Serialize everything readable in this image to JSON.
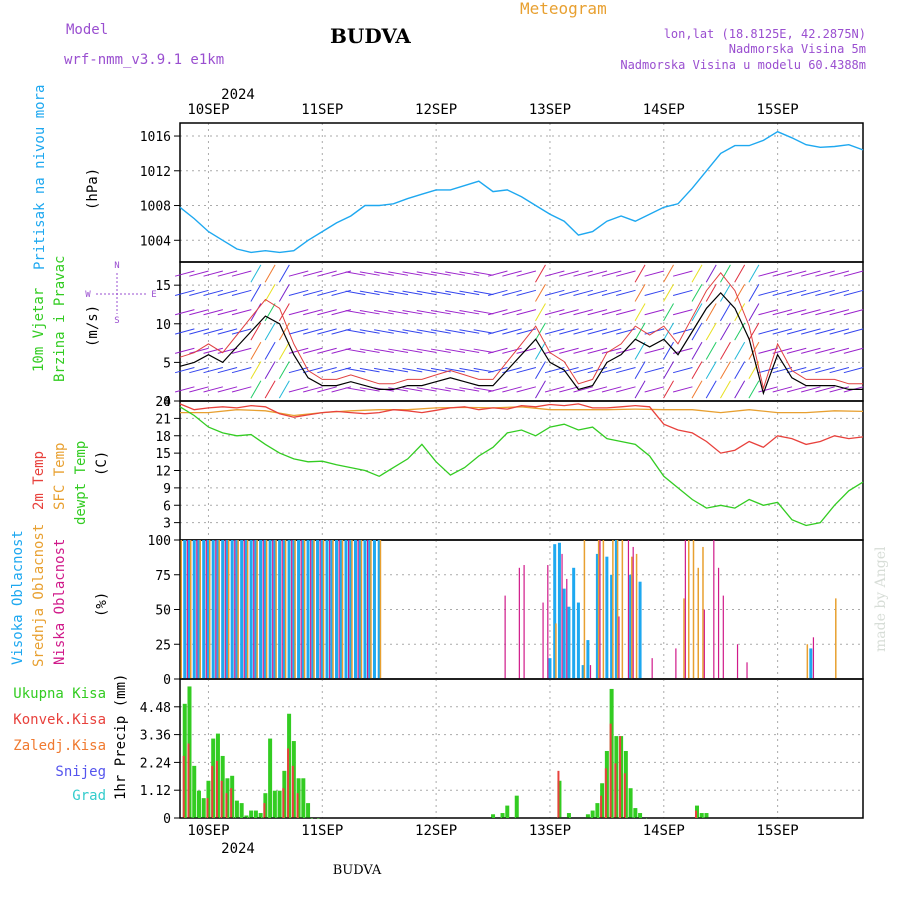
{
  "header": {
    "model_label": "Model",
    "model_name": "wrf-nmm_v3.9.1 e1km",
    "station": "BUDVA",
    "product": "Meteogram",
    "coords": "lon,lat (18.8125E, 42.2875N)",
    "elevation": "Nadmorska Visina 5m",
    "model_elevation": "Nadmorska Visina u modelu 60.4388m",
    "footer_station": "BUDVA",
    "watermark": "made by Angel"
  },
  "colors": {
    "pressure": "#1ea8f0",
    "wind_speed": "#000000",
    "gust": "#e04040",
    "temp2m": "#e8413c",
    "sfc_temp": "#e8a030",
    "dewpt": "#33cc22",
    "cloud_high": "#1ea8f0",
    "cloud_mid": "#e8a030",
    "cloud_low": "#d01a8a",
    "precip_total": "#33cc22",
    "precip_conv": "#e8413c",
    "precip_frz": "#f07a30",
    "snow": "#5555ee",
    "grad": "#33cccc",
    "label_title": "#9a4fd0",
    "label_orange": "#e8a030"
  },
  "time_axis": {
    "year": "2024",
    "days": [
      "10SEP",
      "11SEP",
      "12SEP",
      "13SEP",
      "14SEP",
      "15SEP"
    ]
  },
  "panels": {
    "pressure": {
      "ylabel_name": "Pritisak na nivou mora",
      "ylabel_unit": "(hPa)",
      "ticks": [
        "1004",
        "1008",
        "1012",
        "1016"
      ]
    },
    "wind": {
      "ylabel_name1": "10m Vjetar",
      "ylabel_name2": "Brzina i Pravac",
      "ylabel_unit": "(m/s)",
      "compass_n": "N",
      "compass_w": "W",
      "compass_e": "E",
      "compass_s": "S",
      "ticks": [
        "0",
        "5",
        "10",
        "15"
      ]
    },
    "temperature": {
      "ylabel_t2m": "2m Temp",
      "ylabel_sfc": "SFC Temp",
      "ylabel_dew": "dewpt Temp",
      "ylabel_unit": "(C)",
      "ticks": [
        "3",
        "6",
        "9",
        "12",
        "15",
        "18",
        "21",
        "24"
      ]
    },
    "cloud": {
      "ylabel_high": "Visoka Oblacnost",
      "ylabel_mid": "Srednja Oblacnost",
      "ylabel_low": "Niska Oblacnost",
      "ylabel_unit": "(%)",
      "ticks": [
        "0",
        "25",
        "50",
        "75",
        "100"
      ]
    },
    "precip": {
      "legend": [
        "Ukupna Kisa",
        "Konvek.Kisa",
        "Zaledj.Kisa",
        "Snijeg",
        "Grad"
      ],
      "ylabel": "1hr Precip (mm)",
      "ticks": [
        "0",
        "1.12",
        "2.24",
        "3.36",
        "4.48"
      ]
    }
  },
  "chart_data": {
    "type": "line",
    "x_unit": "hours from 10SEP 00 UTC",
    "x_range": [
      -6,
      138
    ],
    "series": [
      {
        "name": "Pritisak na nivou mora",
        "unit": "hPa",
        "ylim": [
          1001.5,
          1017.5
        ],
        "x": [
          -6,
          -3,
          0,
          3,
          6,
          9,
          12,
          15,
          18,
          21,
          24,
          27,
          30,
          33,
          36,
          39,
          42,
          45,
          48,
          51,
          54,
          57,
          60,
          63,
          66,
          69,
          72,
          75,
          78,
          81,
          84,
          87,
          90,
          93,
          96,
          99,
          102,
          105,
          108,
          111,
          114,
          117,
          120,
          123,
          126,
          129,
          132,
          135,
          138
        ],
        "values": [
          1007.8,
          1006.5,
          1005.0,
          1004.0,
          1003.0,
          1002.6,
          1002.8,
          1002.6,
          1002.8,
          1004.0,
          1005.0,
          1006.0,
          1006.8,
          1008.0,
          1008.0,
          1008.2,
          1008.8,
          1009.3,
          1009.8,
          1009.8,
          1010.3,
          1010.8,
          1009.6,
          1009.8,
          1009.0,
          1008.0,
          1007.0,
          1006.2,
          1004.6,
          1005.0,
          1006.2,
          1006.8,
          1006.2,
          1007.0,
          1007.8,
          1008.2,
          1010.0,
          1012.0,
          1014.0,
          1014.9,
          1014.9,
          1015.5,
          1016.5,
          1015.8,
          1015.0,
          1014.7,
          1014.8,
          1015.0,
          1014.4
        ]
      },
      {
        "name": "10m Vjetar",
        "unit": "m/s",
        "ylim": [
          0,
          18
        ],
        "x": [
          -6,
          -3,
          0,
          3,
          6,
          9,
          12,
          15,
          18,
          21,
          24,
          27,
          30,
          33,
          36,
          39,
          42,
          45,
          48,
          51,
          54,
          57,
          60,
          63,
          66,
          69,
          72,
          75,
          78,
          81,
          84,
          87,
          90,
          93,
          96,
          99,
          102,
          105,
          108,
          111,
          114,
          117,
          120,
          123,
          126,
          129,
          132,
          135,
          138
        ],
        "values": [
          4.5,
          5,
          6,
          5,
          7,
          9,
          11,
          10,
          6,
          3,
          2,
          2,
          2.5,
          2,
          1.5,
          1.5,
          2,
          2,
          2.5,
          3,
          2.5,
          2,
          2,
          4,
          6,
          8,
          5,
          4,
          1.5,
          2,
          5,
          6,
          8,
          7,
          8,
          6,
          9,
          12,
          14,
          12,
          8,
          1,
          6,
          3,
          2,
          2,
          2,
          1.5,
          1.5
        ]
      },
      {
        "name": "2m Temp",
        "unit": "C",
        "ylim": [
          0,
          24
        ],
        "x": [
          -6,
          -3,
          0,
          3,
          6,
          9,
          12,
          15,
          18,
          21,
          24,
          27,
          30,
          33,
          36,
          39,
          42,
          45,
          48,
          51,
          54,
          57,
          60,
          63,
          66,
          69,
          72,
          75,
          78,
          81,
          84,
          87,
          90,
          93,
          96,
          99,
          102,
          105,
          108,
          111,
          114,
          117,
          120,
          123,
          126,
          129,
          132,
          135,
          138
        ],
        "values": [
          23.5,
          22.5,
          22.8,
          23.0,
          22.8,
          23.2,
          23.0,
          21.8,
          21.2,
          21.6,
          22.0,
          22.2,
          22.0,
          21.8,
          22.0,
          22.5,
          22.3,
          22.0,
          22.4,
          22.8,
          23.0,
          22.5,
          22.8,
          22.6,
          23.2,
          23.0,
          23.4,
          23.2,
          23.5,
          22.8,
          22.8,
          23.0,
          23.2,
          23.0,
          20.0,
          19.0,
          18.5,
          17.0,
          15.0,
          15.5,
          17.0,
          16.0,
          18.0,
          17.5,
          16.5,
          17.0,
          18.0,
          17.5,
          17.8
        ]
      },
      {
        "name": "SFC Temp",
        "unit": "C",
        "ylim": [
          0,
          24
        ],
        "x": [
          -6,
          0,
          6,
          12,
          18,
          24,
          30,
          36,
          42,
          48,
          54,
          60,
          66,
          72,
          78,
          84,
          90,
          96,
          102,
          108,
          114,
          120,
          126,
          132,
          138
        ],
        "values": [
          22.0,
          22.0,
          22.5,
          22.3,
          21.5,
          22.0,
          22.3,
          22.5,
          22.5,
          22.8,
          22.9,
          22.8,
          23.0,
          22.5,
          22.5,
          22.5,
          22.6,
          22.5,
          22.5,
          22.0,
          22.5,
          22.0,
          22.0,
          22.3,
          22.2
        ]
      },
      {
        "name": "dewpt Temp",
        "unit": "C",
        "ylim": [
          0,
          24
        ],
        "x": [
          -6,
          -3,
          0,
          3,
          6,
          9,
          12,
          15,
          18,
          21,
          24,
          27,
          30,
          33,
          36,
          39,
          42,
          45,
          48,
          51,
          54,
          57,
          60,
          63,
          66,
          69,
          72,
          75,
          78,
          81,
          84,
          87,
          90,
          93,
          96,
          99,
          102,
          105,
          108,
          111,
          114,
          117,
          120,
          123,
          126,
          129,
          132,
          135,
          138
        ],
        "values": [
          23,
          21.5,
          19.5,
          18.5,
          18.0,
          18.2,
          16.5,
          15.0,
          14.0,
          13.5,
          13.6,
          13.0,
          12.5,
          12.0,
          11.0,
          12.5,
          14.0,
          16.5,
          13.5,
          11.2,
          12.5,
          14.5,
          16.0,
          18.5,
          19.0,
          18.0,
          19.5,
          20.0,
          19.0,
          19.5,
          17.5,
          17.0,
          16.5,
          14.5,
          11.0,
          9.0,
          7.0,
          5.5,
          6.0,
          5.5,
          7.0,
          6.0,
          6.5,
          3.5,
          2.5,
          3.0,
          6.0,
          8.5,
          10.0
        ]
      }
    ],
    "cloud_cover": {
      "unit": "%",
      "ylim": [
        0,
        100
      ],
      "high_x": [
        -5,
        -4,
        -3,
        -2,
        -1,
        0,
        1,
        2,
        3,
        4,
        5,
        6,
        7,
        8,
        9,
        10,
        11,
        12,
        13,
        14,
        15,
        16,
        17,
        18,
        19,
        20,
        21,
        22,
        23,
        24,
        25,
        26,
        27,
        28,
        29,
        30,
        31,
        32,
        33,
        34,
        35,
        36,
        72,
        73,
        74,
        75,
        76,
        77,
        78,
        79,
        80,
        82,
        84,
        85,
        86,
        89,
        91,
        127
      ],
      "high_v": [
        100,
        100,
        100,
        100,
        100,
        100,
        100,
        100,
        100,
        100,
        100,
        100,
        100,
        100,
        100,
        100,
        100,
        100,
        100,
        100,
        100,
        100,
        100,
        100,
        100,
        100,
        100,
        100,
        100,
        100,
        100,
        100,
        100,
        100,
        100,
        100,
        100,
        100,
        100,
        100,
        100,
        100,
        15,
        97,
        98,
        65,
        52,
        80,
        55,
        10,
        28,
        90,
        88,
        75,
        100,
        75,
        70,
        22
      ],
      "mid_x": [
        -6,
        -4,
        -2,
        0,
        2,
        4,
        6,
        8,
        10,
        12,
        14,
        16,
        18,
        20,
        22,
        24,
        26,
        28,
        30,
        32,
        34,
        36,
        73,
        79,
        82,
        83,
        85,
        86,
        87,
        89,
        90,
        100,
        101,
        102,
        103,
        104,
        126,
        132
      ],
      "mid_v": [
        100,
        100,
        100,
        100,
        100,
        100,
        100,
        100,
        100,
        100,
        100,
        100,
        100,
        100,
        100,
        100,
        100,
        100,
        100,
        100,
        100,
        100,
        40,
        100,
        100,
        100,
        100,
        100,
        100,
        88,
        90,
        58,
        100,
        100,
        80,
        95,
        25,
        58
      ],
      "low_x": [
        -5,
        -3,
        -1,
        1,
        3,
        5,
        7,
        9,
        11,
        13,
        15,
        17,
        19,
        21,
        23,
        25,
        27,
        29,
        31,
        33,
        62,
        65,
        66,
        70,
        71,
        74,
        75,
        80,
        82,
        86,
        88,
        89,
        93,
        98,
        100,
        104,
        106,
        107,
        108,
        111,
        113,
        127
      ],
      "low_v": [
        100,
        100,
        100,
        100,
        100,
        100,
        100,
        100,
        100,
        100,
        100,
        100,
        100,
        100,
        100,
        100,
        100,
        100,
        100,
        100,
        60,
        80,
        82,
        55,
        82,
        90,
        72,
        10,
        100,
        45,
        100,
        95,
        15,
        22,
        100,
        50,
        100,
        80,
        60,
        25,
        12,
        30
      ]
    },
    "precipitation": {
      "unit": "mm",
      "ylim": [
        0,
        5.6
      ],
      "total_x": [
        -5,
        -4,
        -3,
        -2,
        -1,
        0,
        1,
        2,
        3,
        4,
        5,
        6,
        7,
        8,
        9,
        10,
        11,
        12,
        13,
        14,
        15,
        16,
        17,
        18,
        19,
        20,
        21,
        22,
        23,
        60,
        62,
        63,
        65,
        74,
        76,
        80,
        81,
        82,
        83,
        84,
        85,
        86,
        87,
        88,
        89,
        90,
        91,
        92,
        103,
        104,
        105
      ],
      "total_v": [
        4.6,
        5.3,
        2.1,
        1.1,
        0.8,
        1.5,
        3.2,
        3.4,
        2.5,
        1.6,
        1.7,
        0.7,
        0.6,
        0.1,
        0.3,
        0.3,
        0.2,
        1.0,
        3.2,
        1.1,
        1.1,
        1.9,
        4.2,
        3.1,
        1.6,
        1.6,
        0.6,
        0.0,
        0.0,
        0.15,
        0.2,
        0.5,
        0.9,
        1.5,
        0.2,
        0.15,
        0.3,
        0.6,
        1.4,
        2.7,
        5.2,
        3.3,
        3.3,
        2.7,
        1.2,
        0.4,
        0.2,
        0.0,
        0.5,
        0.2,
        0.2
      ],
      "conv_x": [
        -5,
        -4,
        0,
        1,
        2,
        3,
        4,
        5,
        12,
        16,
        17,
        18,
        19,
        74,
        83,
        84,
        85,
        86,
        87,
        88,
        103
      ],
      "conv_v": [
        2.5,
        3.0,
        0.8,
        2.1,
        2.3,
        1.5,
        1.0,
        1.2,
        0.6,
        1.2,
        2.8,
        2.1,
        1.0,
        1.9,
        0.9,
        2.0,
        3.8,
        2.2,
        3.3,
        1.8,
        0.3
      ]
    }
  }
}
